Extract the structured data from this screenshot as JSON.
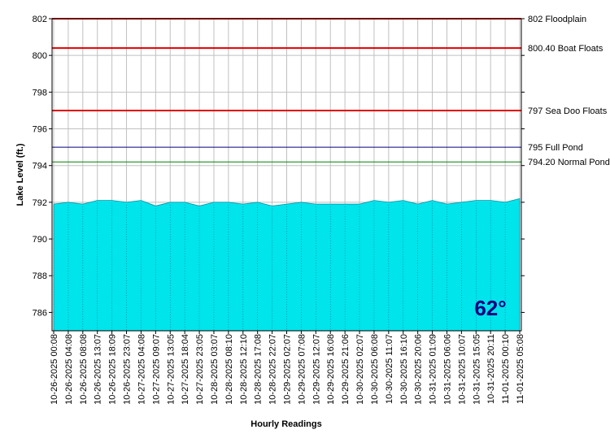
{
  "chart_data": {
    "type": "area",
    "y_label": "Lake Level (ft.)",
    "x_label": "Hourly Readings",
    "badge": "62°",
    "color": "#00e4ec",
    "grid": true,
    "ylim": [
      785,
      802
    ],
    "yticks": [
      786,
      788,
      790,
      792,
      794,
      796,
      798,
      800,
      802
    ],
    "categories": [
      "10-26-2025 00:08",
      "10-26-2025 04:08",
      "10-26-2025 08:08",
      "10-26-2025 13:07",
      "10-26-2025 18:09",
      "10-26-2025 23:07",
      "10-27-2025 04:08",
      "10-27-2025 09:07",
      "10-27-2025 13:05",
      "10-27-2025 18:04",
      "10-27-2025 23:05",
      "10-28-2025 03:07",
      "10-28-2025 08:10",
      "10-28-2025 12:10",
      "10-28-2025 17:08",
      "10-28-2025 22:07",
      "10-29-2025 02:07",
      "10-29-2025 07:08",
      "10-29-2025 12:07",
      "10-29-2025 16:08",
      "10-29-2025 21:06",
      "10-30-2025 02:07",
      "10-30-2025 06:08",
      "10-30-2025 11:07",
      "10-30-2025 16:10",
      "10-30-2025 20:06",
      "10-31-2025 01:09",
      "10-31-2025 06:06",
      "10-31-2025 10:07",
      "10-31-2025 15:05",
      "10-31-2025 20:11",
      "11-01-2025 00:10",
      "11-01-2025 05:08"
    ],
    "values": [
      791.9,
      792.0,
      791.9,
      792.1,
      792.1,
      792.0,
      792.1,
      791.8,
      792.0,
      792.0,
      791.8,
      792.0,
      792.0,
      791.9,
      792.0,
      791.8,
      791.9,
      792.0,
      791.9,
      791.9,
      791.9,
      791.9,
      792.1,
      792.0,
      792.1,
      791.9,
      792.1,
      791.9,
      792.0,
      792.1,
      792.1,
      792.0,
      792.2
    ],
    "reference_lines": [
      {
        "value": 802,
        "label": "802 Floodplain",
        "color": "#e00000"
      },
      {
        "value": 800.4,
        "label": "800.40 Boat Floats",
        "color": "#e00000"
      },
      {
        "value": 797,
        "label": "797 Sea Doo Floats",
        "color": "#e00000"
      },
      {
        "value": 795,
        "label": "795 Full Pond",
        "color": "#000080"
      },
      {
        "value": 794.2,
        "label": "794.20 Normal Pond",
        "color": "#008000"
      }
    ]
  }
}
